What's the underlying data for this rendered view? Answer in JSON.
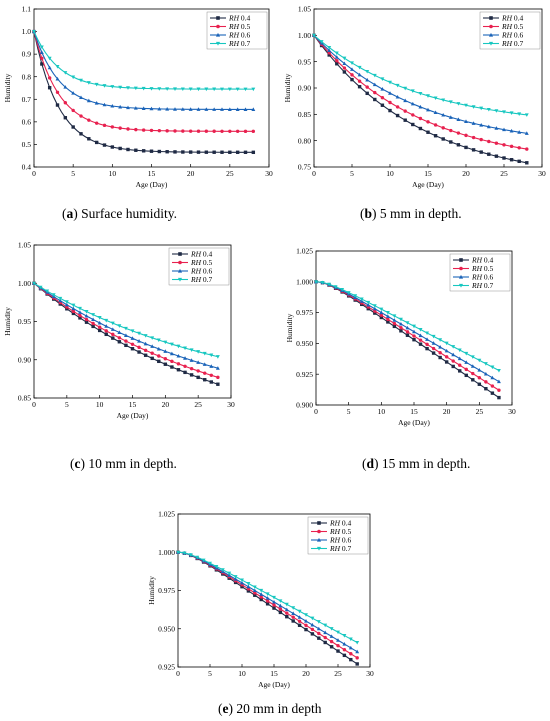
{
  "chart_data": [
    {
      "type": "line",
      "caption_label": "a",
      "caption_text": " Surface humidity.",
      "xlabel": "Age (Day)",
      "ylabel": "Humidity",
      "xlim": [
        0,
        30
      ],
      "ylim": [
        0.4,
        1.1
      ],
      "xticks": [
        0,
        5,
        10,
        15,
        20,
        25,
        30
      ],
      "yticks": [
        0.4,
        0.5,
        0.6,
        0.7,
        0.8,
        0.9,
        1.0,
        1.1
      ],
      "ytick_labels": [
        "0.4",
        "0.5",
        "0.6",
        "0.7",
        "0.8",
        "0.9",
        "1.0",
        "1.1"
      ],
      "legend_position": "top-right",
      "series": [
        {
          "name": "RH 0.4",
          "color": "#1f2a44",
          "marker": "square",
          "start": 1.0,
          "end": 0.465,
          "curve": "fast"
        },
        {
          "name": "RH 0.5",
          "color": "#e8214f",
          "marker": "circle",
          "start": 1.0,
          "end": 0.558,
          "curve": "fast"
        },
        {
          "name": "RH 0.6",
          "color": "#1a63b8",
          "marker": "triangle-up",
          "start": 1.0,
          "end": 0.655,
          "curve": "fast"
        },
        {
          "name": "RH 0.7",
          "color": "#17c7c0",
          "marker": "triangle-down",
          "start": 1.0,
          "end": 0.745,
          "curve": "fast"
        }
      ]
    },
    {
      "type": "line",
      "caption_label": "b",
      "caption_text": " 5 mm in depth.",
      "xlabel": "Age (Day)",
      "ylabel": "Humidity",
      "xlim": [
        0,
        30
      ],
      "ylim": [
        0.75,
        1.05
      ],
      "xticks": [
        0,
        5,
        10,
        15,
        20,
        25,
        30
      ],
      "yticks": [
        0.75,
        0.8,
        0.85,
        0.9,
        0.95,
        1.0,
        1.05
      ],
      "ytick_labels": [
        "0.75",
        "0.80",
        "0.85",
        "0.90",
        "0.95",
        "1.00",
        "1.05"
      ],
      "legend_position": "top-right",
      "series": [
        {
          "name": "RH 0.4",
          "color": "#1f2a44",
          "marker": "square",
          "start": 1.0,
          "end": 0.758,
          "curve": "medium"
        },
        {
          "name": "RH 0.5",
          "color": "#e8214f",
          "marker": "circle",
          "start": 1.0,
          "end": 0.784,
          "curve": "medium"
        },
        {
          "name": "RH 0.6",
          "color": "#1a63b8",
          "marker": "triangle-up",
          "start": 1.0,
          "end": 0.814,
          "curve": "medium"
        },
        {
          "name": "RH 0.7",
          "color": "#17c7c0",
          "marker": "triangle-down",
          "start": 1.0,
          "end": 0.849,
          "curve": "medium"
        }
      ]
    },
    {
      "type": "line",
      "caption_label": "c",
      "caption_text": " 10 mm in depth.",
      "xlabel": "Age (Day)",
      "ylabel": "Humidity",
      "xlim": [
        0,
        30
      ],
      "ylim": [
        0.85,
        1.05
      ],
      "xticks": [
        0,
        5,
        10,
        15,
        20,
        25,
        30
      ],
      "yticks": [
        0.85,
        0.9,
        0.95,
        1.0,
        1.05
      ],
      "ytick_labels": [
        "0.85",
        "0.90",
        "0.95",
        "1.00",
        "1.05"
      ],
      "legend_position": "top-right",
      "series": [
        {
          "name": "RH 0.4",
          "color": "#1f2a44",
          "marker": "square",
          "start": 1.0,
          "end": 0.868,
          "curve": "slow"
        },
        {
          "name": "RH 0.5",
          "color": "#e8214f",
          "marker": "circle",
          "start": 1.0,
          "end": 0.877,
          "curve": "slow"
        },
        {
          "name": "RH 0.6",
          "color": "#1a63b8",
          "marker": "triangle-up",
          "start": 1.0,
          "end": 0.889,
          "curve": "slow"
        },
        {
          "name": "RH 0.7",
          "color": "#17c7c0",
          "marker": "triangle-down",
          "start": 1.0,
          "end": 0.904,
          "curve": "slow"
        }
      ]
    },
    {
      "type": "line",
      "caption_label": "d",
      "caption_text": " 15 mm in depth.",
      "xlabel": "Age (Day)",
      "ylabel": "Humidity",
      "xlim": [
        0,
        30
      ],
      "ylim": [
        0.9,
        1.025
      ],
      "xticks": [
        0,
        5,
        10,
        15,
        20,
        25,
        30
      ],
      "yticks": [
        0.9,
        0.925,
        0.95,
        0.975,
        1.0,
        1.025
      ],
      "ytick_labels": [
        "0.900",
        "0.925",
        "0.950",
        "0.975",
        "1.000",
        "1.025"
      ],
      "legend_position": "top-right",
      "series": [
        {
          "name": "RH 0.4",
          "color": "#1f2a44",
          "marker": "square",
          "start": 1.0,
          "end": 0.906,
          "curve": "sigmoid"
        },
        {
          "name": "RH 0.5",
          "color": "#e8214f",
          "marker": "circle",
          "start": 1.0,
          "end": 0.912,
          "curve": "sigmoid"
        },
        {
          "name": "RH 0.6",
          "color": "#1a63b8",
          "marker": "triangle-up",
          "start": 1.0,
          "end": 0.919,
          "curve": "sigmoid"
        },
        {
          "name": "RH 0.7",
          "color": "#17c7c0",
          "marker": "triangle-down",
          "start": 1.0,
          "end": 0.928,
          "curve": "sigmoid"
        }
      ]
    },
    {
      "type": "line",
      "caption_label": "e",
      "caption_text": " 20 mm in depth",
      "xlabel": "Age (Day)",
      "ylabel": "Humidity",
      "xlim": [
        0,
        30
      ],
      "ylim": [
        0.925,
        1.025
      ],
      "xticks": [
        0,
        5,
        10,
        15,
        20,
        25,
        30
      ],
      "yticks": [
        0.925,
        0.95,
        0.975,
        1.0,
        1.025
      ],
      "ytick_labels": [
        "0.925",
        "0.950",
        "0.975",
        "1.000",
        "1.025"
      ],
      "legend_position": "top-right",
      "series": [
        {
          "name": "RH 0.4",
          "color": "#1f2a44",
          "marker": "square",
          "start": 1.0,
          "end": 0.927,
          "curve": "sigmoid"
        },
        {
          "name": "RH 0.5",
          "color": "#e8214f",
          "marker": "circle",
          "start": 1.0,
          "end": 0.931,
          "curve": "sigmoid"
        },
        {
          "name": "RH 0.6",
          "color": "#1a63b8",
          "marker": "triangle-up",
          "start": 1.0,
          "end": 0.935,
          "curve": "sigmoid"
        },
        {
          "name": "RH 0.7",
          "color": "#17c7c0",
          "marker": "triangle-down",
          "start": 1.0,
          "end": 0.941,
          "curve": "sigmoid"
        }
      ]
    }
  ]
}
